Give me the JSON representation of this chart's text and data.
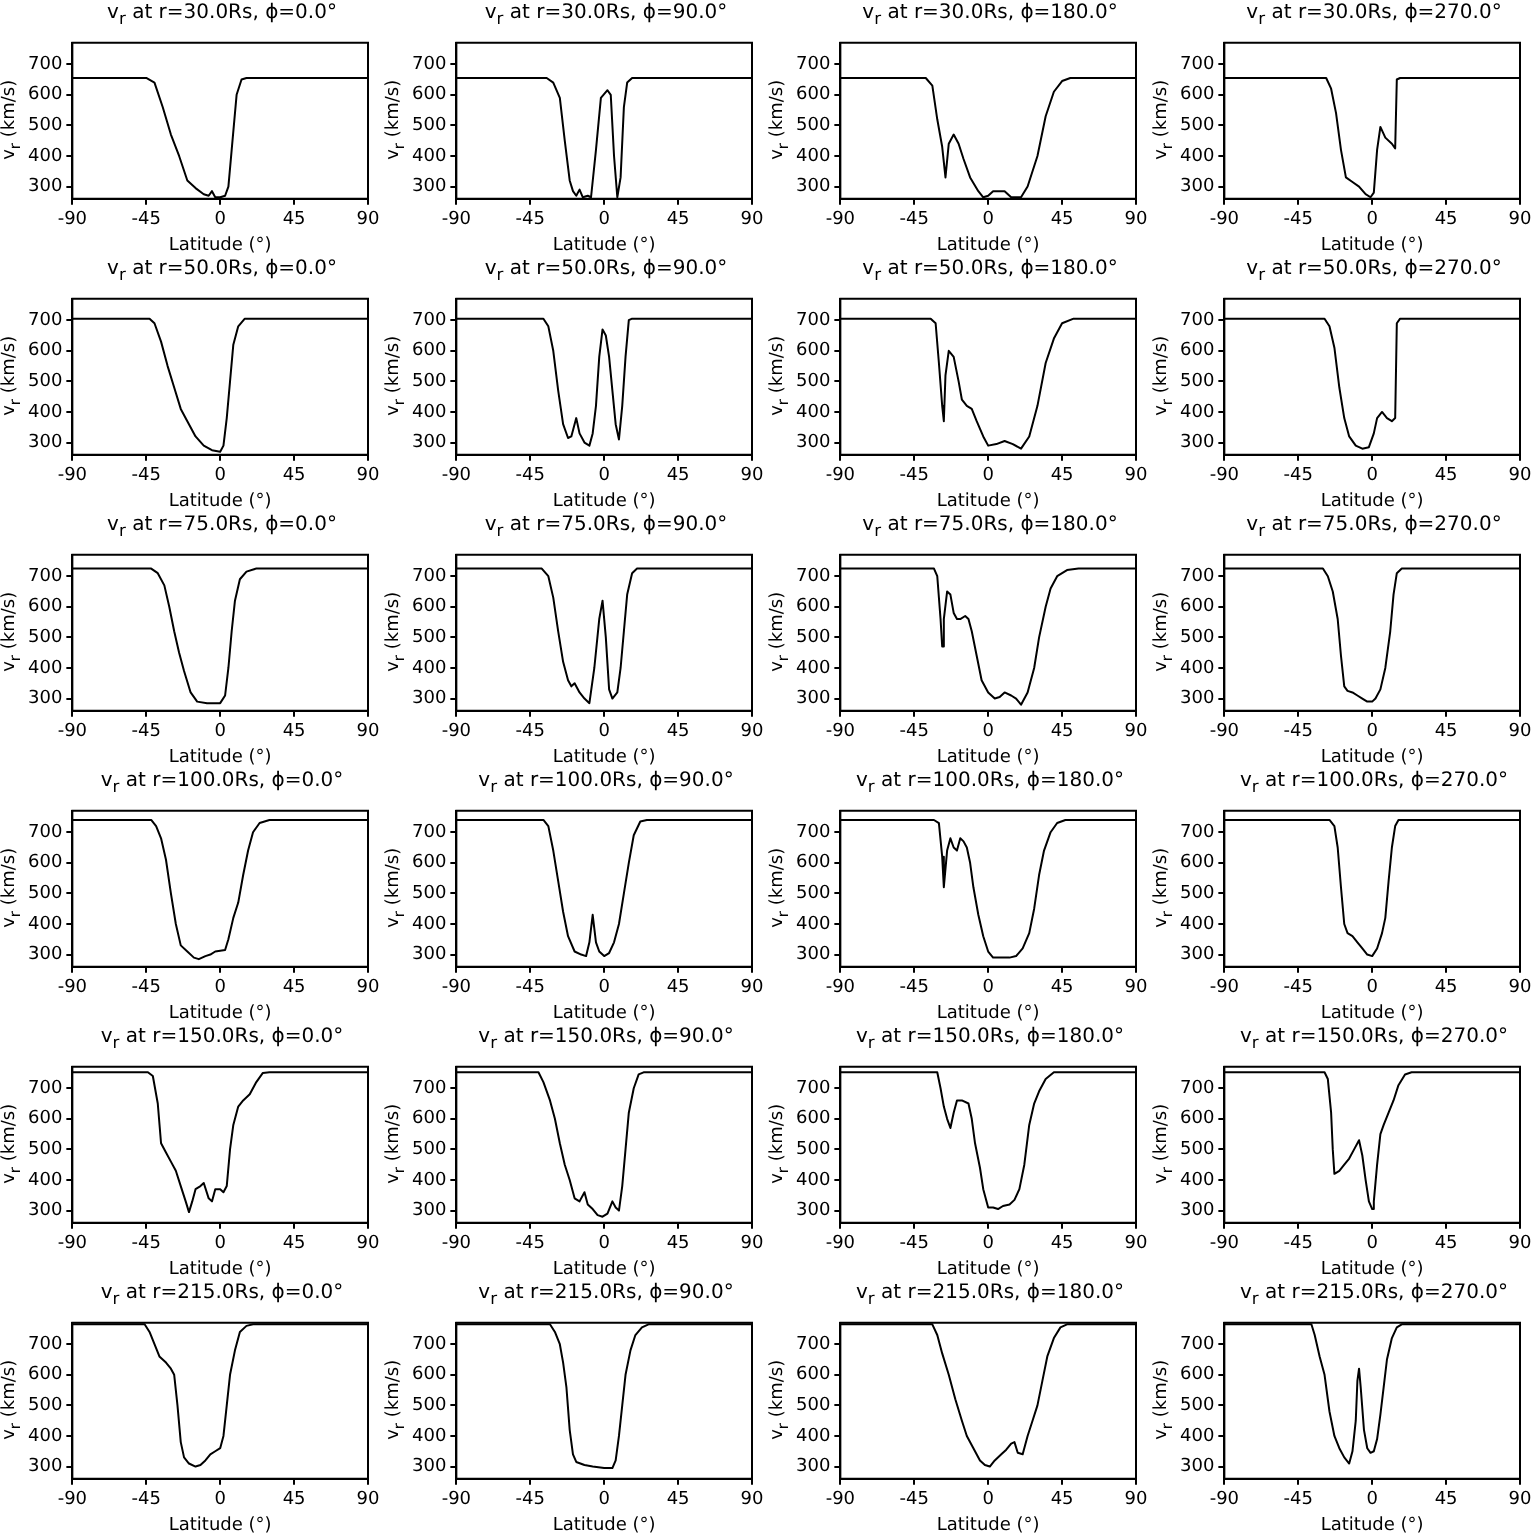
{
  "chart_data": [
    {
      "type": "line",
      "title": "v$_{r}$ at r=30.0Rs, ϕ=0.0°",
      "xlabel": "Latitude (°)",
      "ylabel": "v$_{r}$ (km/s)",
      "color": "#000000",
      "marker": "none",
      "xlim": [
        -90,
        90
      ],
      "xticks": [
        -90,
        -45,
        0,
        45,
        90
      ],
      "ylim": [
        260,
        770
      ],
      "yticks": [
        300,
        400,
        500,
        600,
        700
      ],
      "x": [
        -90,
        -45,
        -40,
        -35,
        -30,
        -25,
        -20,
        -15,
        -10,
        -7,
        -5,
        -3,
        0,
        3,
        5,
        7,
        10,
        13,
        16,
        90
      ],
      "values": [
        655,
        655,
        640,
        560,
        470,
        400,
        320,
        295,
        275,
        270,
        285,
        265,
        265,
        270,
        300,
        420,
        600,
        650,
        655,
        655
      ]
    },
    {
      "type": "line",
      "title": "v$_{r}$ at r=30.0Rs, ϕ=90.0°",
      "xlabel": "Latitude (°)",
      "ylabel": "v$_{r}$ (km/s)",
      "color": "#000000",
      "marker": "none",
      "xlim": [
        -90,
        90
      ],
      "xticks": [
        -90,
        -45,
        0,
        45,
        90
      ],
      "ylim": [
        260,
        770
      ],
      "yticks": [
        300,
        400,
        500,
        600,
        700
      ],
      "x": [
        -90,
        -35,
        -31,
        -27,
        -24,
        -21,
        -19,
        -17,
        -15,
        -13,
        -10,
        -8,
        -5,
        -2,
        2,
        4,
        6,
        8,
        10,
        12,
        14,
        17,
        90
      ],
      "values": [
        655,
        655,
        640,
        590,
        450,
        320,
        285,
        270,
        290,
        265,
        270,
        265,
        420,
        590,
        615,
        600,
        400,
        265,
        330,
        560,
        640,
        655,
        655
      ]
    },
    {
      "type": "line",
      "title": "v$_{r}$ at r=30.0Rs, ϕ=180.0°",
      "xlabel": "Latitude (°)",
      "ylabel": "v$_{r}$ (km/s)",
      "color": "#000000",
      "marker": "none",
      "xlim": [
        -90,
        90
      ],
      "xticks": [
        -90,
        -45,
        0,
        45,
        90
      ],
      "ylim": [
        260,
        770
      ],
      "yticks": [
        300,
        400,
        500,
        600,
        700
      ],
      "x": [
        -90,
        -38,
        -34,
        -31,
        -28,
        -26,
        -24,
        -21,
        -18,
        -15,
        -11,
        -6,
        -3,
        0,
        3,
        10,
        14,
        20,
        24,
        30,
        35,
        40,
        45,
        50,
        90
      ],
      "values": [
        655,
        655,
        630,
        520,
        430,
        330,
        440,
        470,
        440,
        390,
        330,
        285,
        265,
        270,
        285,
        285,
        265,
        265,
        300,
        400,
        530,
        610,
        645,
        655,
        655
      ]
    },
    {
      "type": "line",
      "title": "v$_{r}$ at r=30.0Rs, ϕ=270.0°",
      "xlabel": "Latitude (°)",
      "ylabel": "v$_{r}$ (km/s)",
      "color": "#000000",
      "marker": "none",
      "xlim": [
        -90,
        90
      ],
      "xticks": [
        -90,
        -45,
        0,
        45,
        90
      ],
      "ylim": [
        260,
        770
      ],
      "yticks": [
        300,
        400,
        500,
        600,
        700
      ],
      "x": [
        -90,
        -28,
        -25,
        -22,
        -19,
        -16,
        -12,
        -8,
        -4,
        -1,
        1,
        3,
        5,
        8,
        12,
        14,
        15,
        17,
        90
      ],
      "values": [
        655,
        655,
        620,
        540,
        420,
        330,
        315,
        300,
        275,
        265,
        280,
        420,
        495,
        460,
        440,
        425,
        650,
        655,
        655
      ]
    },
    {
      "type": "line",
      "title": "v$_{r}$ at r=50.0Rs, ϕ=0.0°",
      "xlabel": "Latitude (°)",
      "ylabel": "v$_{r}$ (km/s)",
      "color": "#000000",
      "marker": "none",
      "xlim": [
        -90,
        90
      ],
      "xticks": [
        -90,
        -45,
        0,
        45,
        90
      ],
      "ylim": [
        260,
        770
      ],
      "yticks": [
        300,
        400,
        500,
        600,
        700
      ],
      "x": [
        -90,
        -43,
        -40,
        -36,
        -32,
        -28,
        -24,
        -20,
        -15,
        -10,
        -5,
        0,
        2,
        4,
        6,
        8,
        11,
        15,
        90
      ],
      "values": [
        705,
        705,
        690,
        630,
        550,
        480,
        410,
        370,
        320,
        290,
        275,
        270,
        290,
        380,
        500,
        620,
        680,
        705,
        705
      ]
    },
    {
      "type": "line",
      "title": "v$_{r}$ at r=50.0Rs, ϕ=90.0°",
      "xlabel": "Latitude (°)",
      "ylabel": "v$_{r}$ (km/s)",
      "color": "#000000",
      "marker": "none",
      "xlim": [
        -90,
        90
      ],
      "xticks": [
        -90,
        -45,
        0,
        45,
        90
      ],
      "ylim": [
        260,
        770
      ],
      "yticks": [
        300,
        400,
        500,
        600,
        700
      ],
      "x": [
        -90,
        -37,
        -34,
        -31,
        -28,
        -25,
        -22,
        -20,
        -17,
        -15,
        -12,
        -9,
        -7,
        -5,
        -3,
        -1,
        1,
        3,
        5,
        7,
        9,
        11,
        13,
        15,
        17,
        90
      ],
      "values": [
        705,
        705,
        680,
        600,
        470,
        360,
        315,
        320,
        380,
        330,
        300,
        290,
        330,
        420,
        580,
        670,
        650,
        580,
        470,
        360,
        310,
        420,
        580,
        700,
        705,
        705
      ]
    },
    {
      "type": "line",
      "title": "v$_{r}$ at r=50.0Rs, ϕ=180.0°",
      "xlabel": "Latitude (°)",
      "ylabel": "v$_{r}$ (km/s)",
      "color": "#000000",
      "marker": "none",
      "xlim": [
        -90,
        90
      ],
      "xticks": [
        -90,
        -45,
        0,
        45,
        90
      ],
      "ylim": [
        260,
        770
      ],
      "yticks": [
        300,
        400,
        500,
        600,
        700
      ],
      "x": [
        -90,
        -35,
        -32,
        -30,
        -28,
        -27,
        -26,
        -24,
        -21,
        -18,
        -16,
        -13,
        -10,
        -7,
        -3,
        0,
        5,
        10,
        15,
        20,
        25,
        30,
        35,
        40,
        45,
        52,
        90
      ],
      "values": [
        705,
        705,
        690,
        560,
        420,
        370,
        520,
        600,
        580,
        500,
        440,
        420,
        410,
        370,
        320,
        290,
        295,
        305,
        295,
        280,
        320,
        420,
        560,
        640,
        690,
        705,
        705
      ]
    },
    {
      "type": "line",
      "title": "v$_{r}$ at r=50.0Rs, ϕ=270.0°",
      "xlabel": "Latitude (°)",
      "ylabel": "v$_{r}$ (km/s)",
      "color": "#000000",
      "marker": "none",
      "xlim": [
        -90,
        90
      ],
      "xticks": [
        -90,
        -45,
        0,
        45,
        90
      ],
      "ylim": [
        260,
        770
      ],
      "yticks": [
        300,
        400,
        500,
        600,
        700
      ],
      "x": [
        -90,
        -29,
        -26,
        -23,
        -20,
        -17,
        -14,
        -10,
        -6,
        -2,
        1,
        3,
        6,
        9,
        12,
        14,
        15,
        17,
        90
      ],
      "values": [
        705,
        705,
        680,
        610,
        480,
        380,
        320,
        290,
        280,
        285,
        330,
        380,
        400,
        380,
        370,
        380,
        690,
        705,
        705
      ]
    },
    {
      "type": "line",
      "title": "v$_{r}$ at r=75.0Rs, ϕ=0.0°",
      "xlabel": "Latitude (°)",
      "ylabel": "v$_{r}$ (km/s)",
      "color": "#000000",
      "marker": "none",
      "xlim": [
        -90,
        90
      ],
      "xticks": [
        -90,
        -45,
        0,
        45,
        90
      ],
      "ylim": [
        260,
        770
      ],
      "yticks": [
        300,
        400,
        500,
        600,
        700
      ],
      "x": [
        -90,
        -42,
        -38,
        -34,
        -31,
        -28,
        -25,
        -22,
        -18,
        -14,
        -8,
        -3,
        0,
        3,
        5,
        7,
        9,
        12,
        16,
        22,
        90
      ],
      "values": [
        725,
        725,
        710,
        670,
        600,
        520,
        450,
        390,
        320,
        290,
        285,
        285,
        285,
        310,
        400,
        520,
        620,
        690,
        715,
        725,
        725
      ]
    },
    {
      "type": "line",
      "title": "v$_{r}$ at r=75.0Rs, ϕ=90.0°",
      "xlabel": "Latitude (°)",
      "ylabel": "v$_{r}$ (km/s)",
      "color": "#000000",
      "marker": "none",
      "xlim": [
        -90,
        90
      ],
      "xticks": [
        -90,
        -45,
        0,
        45,
        90
      ],
      "ylim": [
        260,
        770
      ],
      "yticks": [
        300,
        400,
        500,
        600,
        700
      ],
      "x": [
        -90,
        -38,
        -34,
        -31,
        -28,
        -25,
        -22,
        -20,
        -18,
        -15,
        -12,
        -9,
        -6,
        -3,
        -1,
        1,
        3,
        5,
        8,
        10,
        12,
        14,
        17,
        20,
        90
      ],
      "values": [
        725,
        725,
        700,
        630,
        520,
        420,
        360,
        340,
        350,
        320,
        300,
        285,
        400,
        560,
        620,
        500,
        330,
        300,
        320,
        400,
        520,
        640,
        710,
        725,
        725
      ]
    },
    {
      "type": "line",
      "title": "v$_{r}$ at r=75.0Rs, ϕ=180.0°",
      "xlabel": "Latitude (°)",
      "ylabel": "v$_{r}$ (km/s)",
      "color": "#000000",
      "marker": "none",
      "xlim": [
        -90,
        90
      ],
      "xticks": [
        -90,
        -45,
        0,
        45,
        90
      ],
      "ylim": [
        260,
        770
      ],
      "yticks": [
        300,
        400,
        500,
        600,
        700
      ],
      "x": [
        -90,
        -33,
        -31,
        -29,
        -28,
        -27,
        -25,
        -23,
        -21,
        -19,
        -17,
        -14,
        -12,
        -10,
        -7,
        -4,
        0,
        4,
        7,
        10,
        14,
        17,
        20,
        24,
        28,
        31,
        35,
        38,
        42,
        48,
        55,
        90
      ],
      "values": [
        725,
        725,
        700,
        560,
        470,
        560,
        650,
        640,
        580,
        560,
        560,
        570,
        560,
        520,
        440,
        360,
        320,
        300,
        305,
        320,
        310,
        300,
        280,
        320,
        400,
        500,
        600,
        660,
        700,
        720,
        725,
        725
      ]
    },
    {
      "type": "line",
      "title": "v$_{r}$ at r=75.0Rs, ϕ=270.0°",
      "xlabel": "Latitude (°)",
      "ylabel": "v$_{r}$ (km/s)",
      "color": "#000000",
      "marker": "none",
      "xlim": [
        -90,
        90
      ],
      "xticks": [
        -90,
        -45,
        0,
        45,
        90
      ],
      "ylim": [
        260,
        770
      ],
      "yticks": [
        300,
        400,
        500,
        600,
        700
      ],
      "x": [
        -90,
        -30,
        -27,
        -24,
        -21,
        -19,
        -17,
        -15,
        -12,
        -9,
        -6,
        -3,
        0,
        2,
        5,
        8,
        11,
        13,
        15,
        18,
        90
      ],
      "values": [
        725,
        725,
        700,
        650,
        560,
        440,
        340,
        325,
        320,
        310,
        300,
        290,
        290,
        300,
        330,
        400,
        520,
        640,
        710,
        725,
        725
      ]
    },
    {
      "type": "line",
      "title": "v$_{r}$ at r=100.0Rs, ϕ=0.0°",
      "xlabel": "Latitude (°)",
      "ylabel": "v$_{r}$ (km/s)",
      "color": "#000000",
      "marker": "none",
      "xlim": [
        -90,
        90
      ],
      "xticks": [
        -90,
        -45,
        0,
        45,
        90
      ],
      "ylim": [
        260,
        770
      ],
      "yticks": [
        300,
        400,
        500,
        600,
        700
      ],
      "x": [
        -90,
        -42,
        -39,
        -36,
        -33,
        -30,
        -27,
        -24,
        -20,
        -16,
        -13,
        -9,
        -6,
        -3,
        3,
        5,
        8,
        11,
        14,
        17,
        20,
        24,
        30,
        90
      ],
      "values": [
        740,
        740,
        720,
        680,
        610,
        500,
        400,
        330,
        310,
        290,
        285,
        295,
        300,
        310,
        315,
        350,
        420,
        470,
        560,
        640,
        700,
        730,
        740,
        740
      ]
    },
    {
      "type": "line",
      "title": "v$_{r}$ at r=100.0Rs, ϕ=90.0°",
      "xlabel": "Latitude (°)",
      "ylabel": "v$_{r}$ (km/s)",
      "color": "#000000",
      "marker": "none",
      "xlim": [
        -90,
        90
      ],
      "xticks": [
        -90,
        -45,
        0,
        45,
        90
      ],
      "ylim": [
        260,
        770
      ],
      "yticks": [
        300,
        400,
        500,
        600,
        700
      ],
      "x": [
        -90,
        -37,
        -34,
        -31,
        -28,
        -25,
        -22,
        -18,
        -14,
        -11,
        -9,
        -7,
        -5,
        -3,
        0,
        3,
        6,
        9,
        12,
        15,
        18,
        22,
        26,
        90
      ],
      "values": [
        740,
        740,
        720,
        640,
        540,
        440,
        360,
        310,
        300,
        295,
        340,
        430,
        340,
        310,
        295,
        305,
        340,
        400,
        500,
        600,
        690,
        735,
        740,
        740
      ]
    },
    {
      "type": "line",
      "title": "v$_{r}$ at r=100.0Rs, ϕ=180.0°",
      "xlabel": "Latitude (°)",
      "ylabel": "v$_{r}$ (km/s)",
      "color": "#000000",
      "marker": "none",
      "xlim": [
        -90,
        90
      ],
      "xticks": [
        -90,
        -45,
        0,
        45,
        90
      ],
      "ylim": [
        260,
        770
      ],
      "yticks": [
        300,
        400,
        500,
        600,
        700
      ],
      "x": [
        -90,
        -33,
        -30,
        -28,
        -27,
        -25,
        -23,
        -21,
        -19,
        -17,
        -15,
        -13,
        -11,
        -9,
        -6,
        -3,
        0,
        3,
        8,
        13,
        17,
        21,
        25,
        28,
        31,
        34,
        38,
        42,
        47,
        90
      ],
      "values": [
        740,
        740,
        730,
        620,
        520,
        640,
        680,
        650,
        640,
        680,
        670,
        650,
        600,
        520,
        430,
        360,
        310,
        290,
        290,
        290,
        295,
        320,
        370,
        450,
        560,
        640,
        700,
        730,
        740,
        740
      ]
    },
    {
      "type": "line",
      "title": "v$_{r}$ at r=100.0Rs, ϕ=270.0°",
      "xlabel": "Latitude (°)",
      "ylabel": "v$_{r}$ (km/s)",
      "color": "#000000",
      "marker": "none",
      "xlim": [
        -90,
        90
      ],
      "xticks": [
        -90,
        -45,
        0,
        45,
        90
      ],
      "ylim": [
        260,
        770
      ],
      "yticks": [
        300,
        400,
        500,
        600,
        700
      ],
      "x": [
        -90,
        -26,
        -23,
        -21,
        -19,
        -17,
        -15,
        -12,
        -9,
        -6,
        -3,
        0,
        3,
        6,
        8,
        10,
        12,
        14,
        16,
        90
      ],
      "values": [
        740,
        740,
        720,
        650,
        520,
        400,
        370,
        360,
        340,
        320,
        300,
        295,
        320,
        370,
        420,
        540,
        650,
        720,
        740,
        740
      ]
    },
    {
      "type": "line",
      "title": "v$_{r}$ at r=150.0Rs, ϕ=0.0°",
      "xlabel": "Latitude (°)",
      "ylabel": "v$_{r}$ (km/s)",
      "color": "#000000",
      "marker": "none",
      "xlim": [
        -90,
        90
      ],
      "xticks": [
        -90,
        -45,
        0,
        45,
        90
      ],
      "ylim": [
        260,
        770
      ],
      "yticks": [
        300,
        400,
        500,
        600,
        700
      ],
      "x": [
        -90,
        -44,
        -41,
        -38,
        -36,
        -33,
        -30,
        -27,
        -24,
        -21,
        -19,
        -17,
        -15,
        -12,
        -10,
        -7,
        -5,
        -3,
        0,
        2,
        4,
        6,
        8,
        11,
        14,
        18,
        22,
        26,
        30,
        90
      ],
      "values": [
        752,
        752,
        740,
        650,
        520,
        490,
        460,
        430,
        380,
        330,
        295,
        330,
        370,
        380,
        390,
        340,
        330,
        370,
        370,
        360,
        380,
        500,
        580,
        640,
        660,
        680,
        720,
        750,
        752,
        752
      ]
    },
    {
      "type": "line",
      "title": "v$_{r}$ at r=150.0Rs, ϕ=90.0°",
      "xlabel": "Latitude (°)",
      "ylabel": "v$_{r}$ (km/s)",
      "color": "#000000",
      "marker": "none",
      "xlim": [
        -90,
        90
      ],
      "xticks": [
        -90,
        -45,
        0,
        45,
        90
      ],
      "ylim": [
        260,
        770
      ],
      "yticks": [
        300,
        400,
        500,
        600,
        700
      ],
      "x": [
        -90,
        -40,
        -37,
        -33,
        -30,
        -27,
        -24,
        -21,
        -18,
        -15,
        -12,
        -10,
        -7,
        -4,
        -1,
        2,
        5,
        7,
        9,
        11,
        13,
        15,
        18,
        21,
        24,
        90
      ],
      "values": [
        752,
        752,
        720,
        660,
        600,
        520,
        450,
        400,
        340,
        330,
        360,
        320,
        305,
        285,
        280,
        290,
        330,
        310,
        300,
        380,
        500,
        620,
        700,
        745,
        752,
        752
      ]
    },
    {
      "type": "line",
      "title": "v$_{r}$ at r=150.0Rs, ϕ=180.0°",
      "xlabel": "Latitude (°)",
      "ylabel": "v$_{r}$ (km/s)",
      "color": "#000000",
      "marker": "none",
      "xlim": [
        -90,
        90
      ],
      "xticks": [
        -90,
        -45,
        0,
        45,
        90
      ],
      "ylim": [
        260,
        770
      ],
      "yticks": [
        300,
        400,
        500,
        600,
        700
      ],
      "x": [
        -90,
        -31,
        -29,
        -27,
        -25,
        -23,
        -21,
        -19,
        -16,
        -12,
        -10,
        -8,
        -5,
        -3,
        0,
        3,
        6,
        9,
        13,
        16,
        19,
        22,
        25,
        28,
        31,
        35,
        40,
        90
      ],
      "values": [
        752,
        752,
        700,
        640,
        600,
        570,
        620,
        660,
        660,
        650,
        600,
        520,
        440,
        370,
        310,
        310,
        305,
        315,
        320,
        335,
        370,
        450,
        580,
        650,
        690,
        730,
        752,
        752
      ]
    },
    {
      "type": "line",
      "title": "v$_{r}$ at r=150.0Rs, ϕ=270.0°",
      "xlabel": "Latitude (°)",
      "ylabel": "v$_{r}$ (km/s)",
      "color": "#000000",
      "marker": "none",
      "xlim": [
        -90,
        90
      ],
      "xticks": [
        -90,
        -45,
        0,
        45,
        90
      ],
      "ylim": [
        260,
        770
      ],
      "yticks": [
        300,
        400,
        500,
        600,
        700
      ],
      "x": [
        -90,
        -29,
        -27,
        -25,
        -24,
        -23,
        -20,
        -17,
        -14,
        -11,
        -8,
        -6,
        -4,
        -2,
        0,
        1,
        3,
        5,
        7,
        10,
        13,
        16,
        20,
        24,
        90
      ],
      "values": [
        752,
        752,
        730,
        620,
        500,
        420,
        430,
        450,
        470,
        500,
        530,
        480,
        400,
        330,
        305,
        330,
        450,
        550,
        580,
        620,
        660,
        710,
        745,
        752,
        752
      ]
    },
    {
      "type": "line",
      "title": "v$_{r}$ at r=215.0Rs, ϕ=0.0°",
      "xlabel": "Latitude (°)",
      "ylabel": "v$_{r}$ (km/s)",
      "color": "#000000",
      "marker": "none",
      "xlim": [
        -90,
        90
      ],
      "xticks": [
        -90,
        -45,
        0,
        45,
        90
      ],
      "ylim": [
        260,
        770
      ],
      "yticks": [
        300,
        400,
        500,
        600,
        700
      ],
      "x": [
        -90,
        -46,
        -43,
        -40,
        -37,
        -33,
        -30,
        -28,
        -26,
        -24,
        -22,
        -19,
        -15,
        -12,
        -9,
        -6,
        -3,
        0,
        2,
        4,
        6,
        9,
        12,
        16,
        20,
        90
      ],
      "values": [
        765,
        765,
        740,
        700,
        660,
        640,
        620,
        600,
        500,
        380,
        330,
        310,
        300,
        305,
        320,
        340,
        350,
        360,
        400,
        500,
        600,
        680,
        740,
        760,
        765,
        765
      ]
    },
    {
      "type": "line",
      "title": "v$_{r}$ at r=215.0Rs, ϕ=90.0°",
      "xlabel": "Latitude (°)",
      "ylabel": "v$_{r}$ (km/s)",
      "color": "#000000",
      "marker": "none",
      "xlim": [
        -90,
        90
      ],
      "xticks": [
        -90,
        -45,
        0,
        45,
        90
      ],
      "ylim": [
        260,
        770
      ],
      "yticks": [
        300,
        400,
        500,
        600,
        700
      ],
      "x": [
        -90,
        -33,
        -30,
        -27,
        -25,
        -23,
        -21,
        -19,
        -17,
        -12,
        -7,
        0,
        5,
        7,
        9,
        11,
        13,
        16,
        19,
        23,
        27,
        90
      ],
      "values": [
        765,
        765,
        740,
        700,
        640,
        560,
        420,
        340,
        315,
        305,
        300,
        295,
        295,
        320,
        400,
        500,
        600,
        680,
        730,
        755,
        765,
        765
      ]
    },
    {
      "type": "line",
      "title": "v$_{r}$ at r=215.0Rs, ϕ=180.0°",
      "xlabel": "Latitude (°)",
      "ylabel": "v$_{r}$ (km/s)",
      "color": "#000000",
      "marker": "none",
      "xlim": [
        -90,
        90
      ],
      "xticks": [
        -90,
        -45,
        0,
        45,
        90
      ],
      "ylim": [
        260,
        770
      ],
      "yticks": [
        300,
        400,
        500,
        600,
        700
      ],
      "x": [
        -90,
        -34,
        -31,
        -28,
        -24,
        -20,
        -16,
        -13,
        -9,
        -5,
        -2,
        1,
        4,
        8,
        11,
        14,
        16,
        18,
        21,
        24,
        27,
        30,
        33,
        36,
        40,
        44,
        48,
        90
      ],
      "values": [
        765,
        765,
        730,
        670,
        600,
        520,
        450,
        400,
        360,
        320,
        305,
        300,
        320,
        340,
        355,
        375,
        380,
        345,
        340,
        400,
        450,
        500,
        580,
        660,
        720,
        755,
        765,
        765
      ]
    },
    {
      "type": "line",
      "title": "v$_{r}$ at r=215.0Rs, ϕ=270.0°",
      "xlabel": "Latitude (°)",
      "ylabel": "v$_{r}$ (km/s)",
      "color": "#000000",
      "marker": "none",
      "xlim": [
        -90,
        90
      ],
      "xticks": [
        -90,
        -45,
        0,
        45,
        90
      ],
      "ylim": [
        260,
        770
      ],
      "yticks": [
        300,
        400,
        500,
        600,
        700
      ],
      "x": [
        -90,
        -37,
        -35,
        -32,
        -29,
        -26,
        -23,
        -20,
        -17,
        -14,
        -12,
        -10,
        -9,
        -8,
        -7,
        -5,
        -3,
        -1,
        1,
        3,
        5,
        7,
        9,
        12,
        15,
        18,
        90
      ],
      "values": [
        765,
        765,
        730,
        660,
        600,
        480,
        400,
        360,
        330,
        310,
        350,
        450,
        580,
        620,
        560,
        420,
        360,
        345,
        350,
        390,
        470,
        560,
        650,
        720,
        755,
        765,
        765
      ]
    }
  ]
}
